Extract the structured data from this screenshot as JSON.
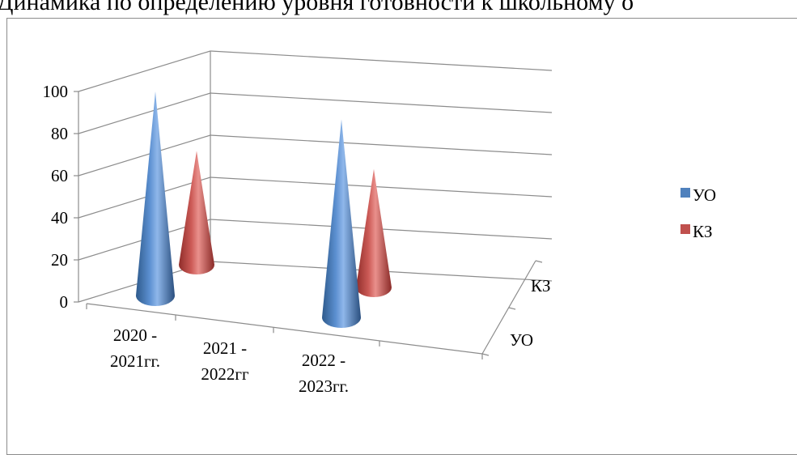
{
  "title": "Динамика по определению уровня готовности к школьному о",
  "chart_data": {
    "type": "bar",
    "shape": "cone-3d",
    "categories": [
      [
        "2020 -",
        "2021гг."
      ],
      [
        "2021  -",
        "2022гг"
      ],
      [
        "2022 -",
        "2023гг."
      ]
    ],
    "series": [
      {
        "name": "УО",
        "color": "#4f81bd",
        "values": [
          100,
          null,
          97
        ]
      },
      {
        "name": "КЗ",
        "color": "#c0504d",
        "values": [
          74,
          null,
          77
        ]
      }
    ],
    "depth_labels": [
      "УО",
      "КЗ"
    ],
    "ylim": [
      0,
      100
    ],
    "yticks": [
      0,
      20,
      40,
      60,
      80,
      100
    ],
    "grid": true,
    "legend": "right"
  }
}
